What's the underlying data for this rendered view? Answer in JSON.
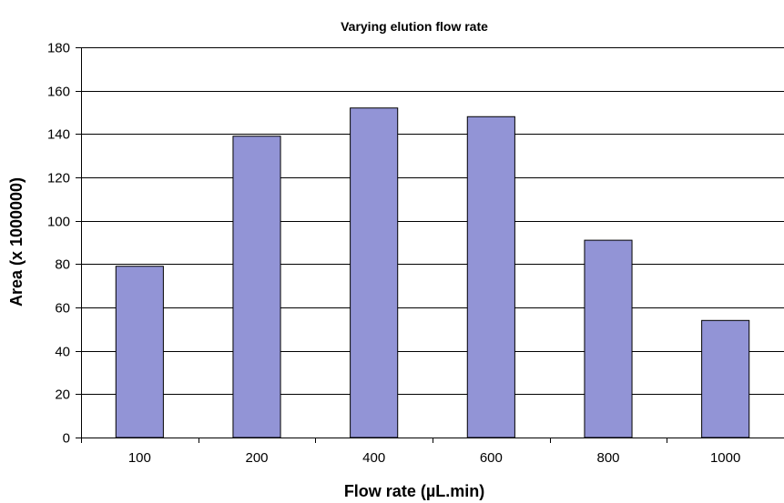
{
  "chart_data": {
    "type": "bar",
    "title": "Varying elution flow rate",
    "xlabel": "Flow rate (µL.min)",
    "ylabel": "Area (x 1000000)",
    "categories": [
      "100",
      "200",
      "400",
      "600",
      "800",
      "1000"
    ],
    "values": [
      79,
      139,
      152,
      148,
      91,
      54
    ],
    "ylim": [
      0,
      180
    ],
    "yticks": [
      0,
      20,
      40,
      60,
      80,
      100,
      120,
      140,
      160,
      180
    ],
    "grid": true,
    "legend": "none",
    "colors": {
      "bar_fill": "#9294d6",
      "bar_stroke": "#000000",
      "grid": "#000000",
      "axis": "#000000"
    }
  }
}
